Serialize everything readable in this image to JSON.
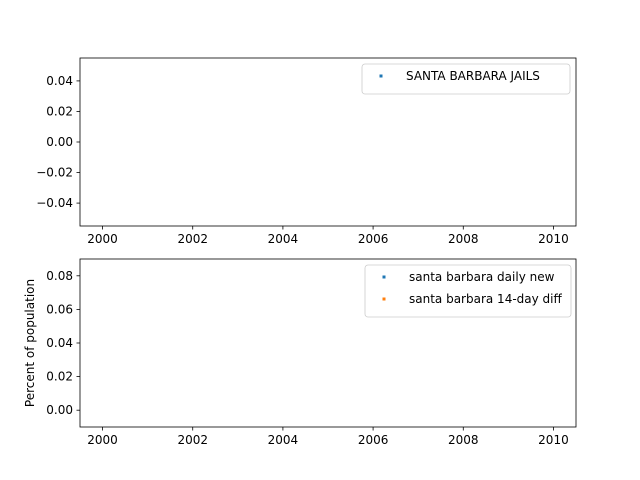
{
  "chart_data": [
    {
      "type": "scatter",
      "title": "",
      "xlabel": "",
      "ylabel": "",
      "xlim": [
        1999.5,
        2010.5
      ],
      "ylim": [
        -0.055,
        0.055
      ],
      "xticks": [
        2000,
        2002,
        2004,
        2006,
        2008,
        2010
      ],
      "xtick_labels": [
        "2000",
        "2002",
        "2004",
        "2006",
        "2008",
        "2010"
      ],
      "yticks": [
        -0.04,
        -0.02,
        0.0,
        0.02,
        0.04
      ],
      "ytick_labels": [
        "−0.04",
        "−0.02",
        "0.00",
        "0.02",
        "0.04"
      ],
      "grid": false,
      "legend": "top-right",
      "series": [
        {
          "name": "SANTA BARBARA JAILS",
          "color": "#1f77b4",
          "x": [],
          "y": []
        }
      ]
    },
    {
      "type": "scatter",
      "title": "",
      "xlabel": "",
      "ylabel": "Percent of population",
      "xlim": [
        1999.5,
        2010.5
      ],
      "ylim": [
        -0.01,
        0.09
      ],
      "xticks": [
        2000,
        2002,
        2004,
        2006,
        2008,
        2010
      ],
      "xtick_labels": [
        "2000",
        "2002",
        "2004",
        "2006",
        "2008",
        "2010"
      ],
      "yticks": [
        0.0,
        0.02,
        0.04,
        0.06,
        0.08
      ],
      "ytick_labels": [
        "0.00",
        "0.02",
        "0.04",
        "0.06",
        "0.08"
      ],
      "grid": false,
      "legend": "top-right",
      "series": [
        {
          "name": "santa barbara daily new",
          "color": "#1f77b4",
          "x": [],
          "y": []
        },
        {
          "name": "santa barbara 14-day diff",
          "color": "#ff7f0e",
          "x": [],
          "y": []
        }
      ]
    }
  ]
}
